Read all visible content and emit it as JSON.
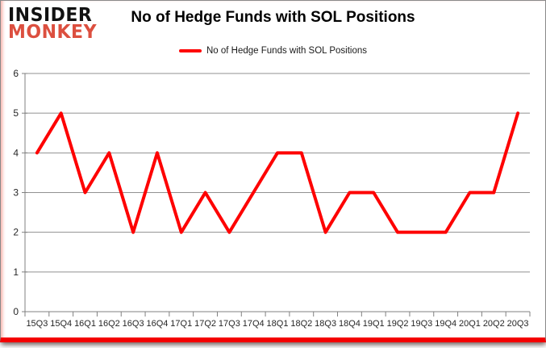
{
  "logo": {
    "line1": "INSIDER",
    "line2": "MONKEY",
    "line2_color": "#dc4f3f"
  },
  "header": {
    "title": "No of Hedge Funds with SOL Positions"
  },
  "legend": {
    "label": "No of Hedge Funds with SOL Positions",
    "swatch_color": "#fe0000"
  },
  "chart_data": {
    "type": "line",
    "title": "No of Hedge Funds with SOL Positions",
    "categories": [
      "15Q3",
      "15Q4",
      "16Q1",
      "16Q2",
      "16Q3",
      "16Q4",
      "17Q1",
      "17Q2",
      "17Q3",
      "17Q4",
      "18Q1",
      "18Q2",
      "18Q3",
      "18Q4",
      "19Q1",
      "19Q2",
      "19Q3",
      "19Q4",
      "20Q1",
      "20Q2",
      "20Q3"
    ],
    "series": [
      {
        "name": "No of Hedge Funds with SOL Positions",
        "color": "#fe0000",
        "values": [
          4,
          5,
          3,
          4,
          2,
          4,
          2,
          3,
          2,
          3,
          4,
          4,
          2,
          3,
          3,
          2,
          2,
          2,
          3,
          3,
          5
        ]
      }
    ],
    "xlabel": "",
    "ylabel": "",
    "ylim": [
      0,
      6
    ],
    "yticks": [
      0,
      1,
      2,
      3,
      4,
      5,
      6
    ],
    "grid": true,
    "legend_position": "top-center"
  },
  "colors": {
    "series_line": "#fe0000",
    "gridline": "#919191",
    "axis": "#808080",
    "tick_label": "#262626",
    "card_bottom_bar": "#f40000",
    "logo_red": "#dc4f3f"
  }
}
